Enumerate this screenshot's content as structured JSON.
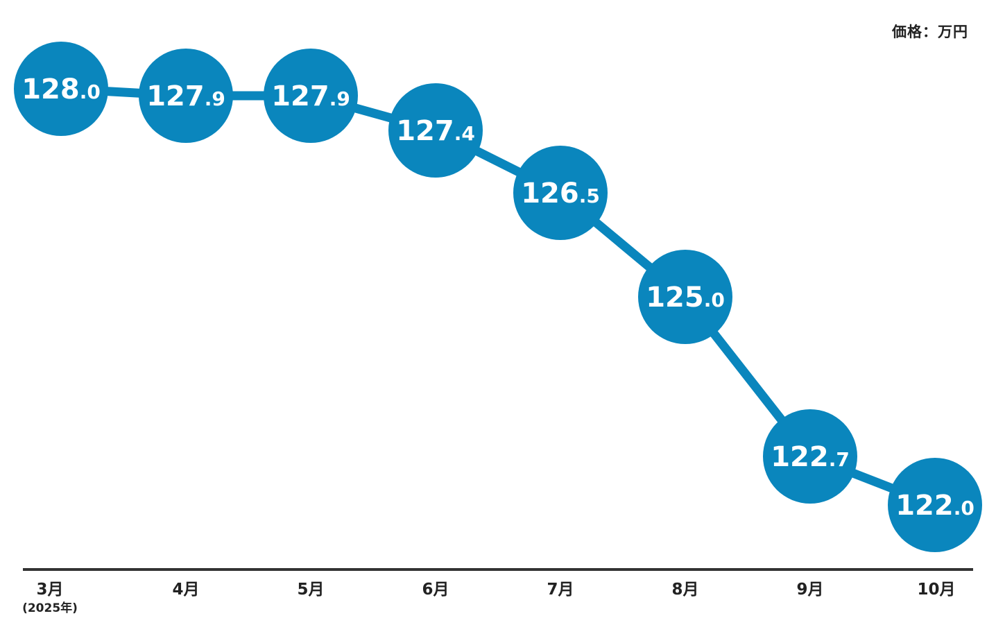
{
  "unit_label": "価格：万円",
  "colors": {
    "accent": "#0a86bd",
    "axis": "#333333",
    "text": "#222222",
    "label_text": "#ffffff"
  },
  "chart_data": {
    "type": "line",
    "title": "",
    "xlabel": "",
    "ylabel": "価格：万円",
    "categories": [
      "3月",
      "4月",
      "5月",
      "6月",
      "7月",
      "8月",
      "9月",
      "10月"
    ],
    "category_note": {
      "index": 0,
      "text": "(2025年)"
    },
    "series": [
      {
        "values": [
          128.0,
          127.9,
          127.9,
          127.4,
          126.5,
          125.0,
          122.7,
          122.0
        ],
        "labels": [
          {
            "int": "128",
            "dec": ".0"
          },
          {
            "int": "127",
            "dec": ".9"
          },
          {
            "int": "127",
            "dec": ".9"
          },
          {
            "int": "127",
            "dec": ".4"
          },
          {
            "int": "126",
            "dec": ".5"
          },
          {
            "int": "125",
            "dec": ".0"
          },
          {
            "int": "122",
            "dec": ".7"
          },
          {
            "int": "122",
            "dec": ".0"
          }
        ]
      }
    ],
    "grid": false,
    "legend": "none"
  }
}
